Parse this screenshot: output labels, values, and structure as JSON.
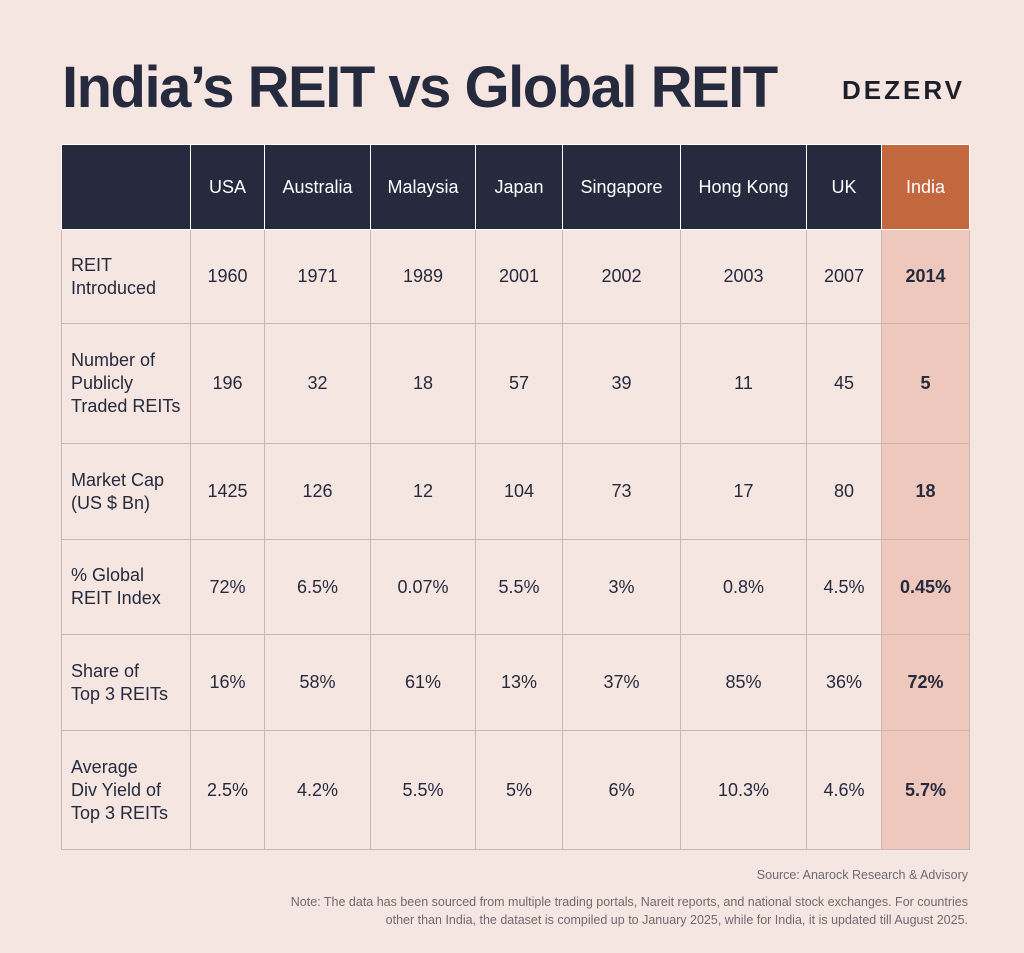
{
  "header": {
    "title": "India’s REIT vs Global REIT",
    "brand": "DEZERV"
  },
  "chart_data": {
    "type": "table",
    "columns": [
      "USA",
      "Australia",
      "Malaysia",
      "Japan",
      "Singapore",
      "Hong Kong",
      "UK",
      "India"
    ],
    "highlight_column": "India",
    "rows": [
      {
        "label_lines": [
          "REIT",
          "Introduced"
        ],
        "values": [
          "1960",
          "1971",
          "1989",
          "2001",
          "2002",
          "2003",
          "2007",
          "2014"
        ]
      },
      {
        "label_lines": [
          "Number of",
          "Publicly",
          "Traded REITs"
        ],
        "values": [
          "196",
          "32",
          "18",
          "57",
          "39",
          "11",
          "45",
          "5"
        ]
      },
      {
        "label_lines": [
          "Market Cap",
          "(US $ Bn)"
        ],
        "values": [
          "1425",
          "126",
          "12",
          "104",
          "73",
          "17",
          "80",
          "18"
        ]
      },
      {
        "label_lines": [
          "% Global",
          "REIT Index"
        ],
        "values": [
          "72%",
          "6.5%",
          "0.07%",
          "5.5%",
          "3%",
          "0.8%",
          "4.5%",
          "0.45%"
        ]
      },
      {
        "label_lines": [
          "Share of",
          "Top 3 REITs"
        ],
        "values": [
          "16%",
          "58%",
          "61%",
          "13%",
          "37%",
          "85%",
          "36%",
          "72%"
        ]
      },
      {
        "label_lines": [
          "Average",
          "Div Yield of",
          "Top 3 REITs"
        ],
        "values": [
          "2.5%",
          "4.2%",
          "5.5%",
          "5%",
          "6%",
          "10.3%",
          "4.6%",
          "5.7%"
        ]
      }
    ]
  },
  "footer": {
    "source": "Source: Anarock Research & Advisory",
    "note": "Note: The data has been sourced from multiple trading portals, Nareit reports, and national stock exchanges. For countries other than India, the dataset is compiled up to January 2025, while for India, it is updated till August 2025."
  },
  "colors": {
    "background": "#f6e6e1",
    "header_fill": "#252a3e",
    "india_header": "#c2673e",
    "india_column": "#efc8bd",
    "grid": "#cdb5b1"
  }
}
